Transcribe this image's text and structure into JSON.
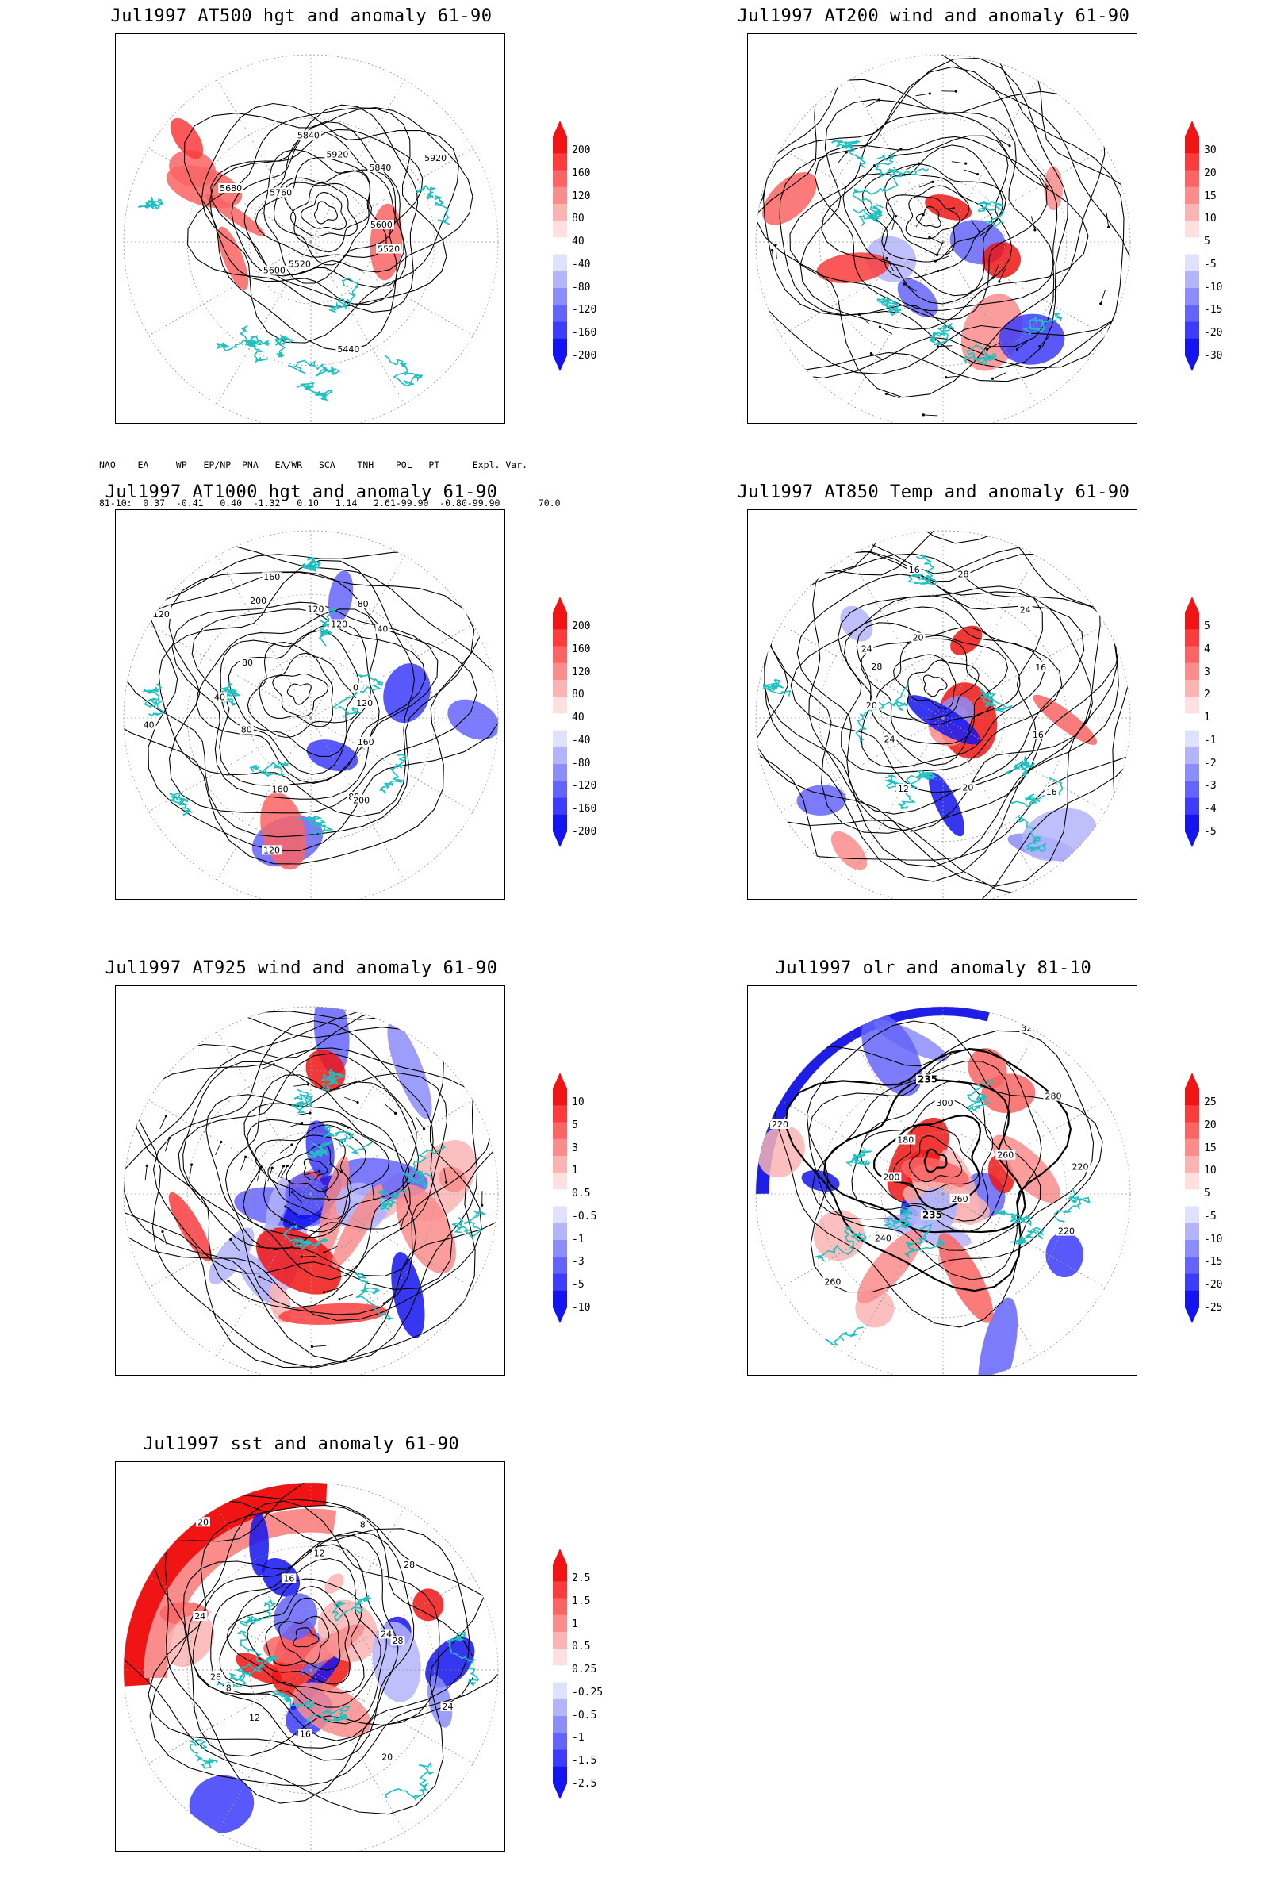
{
  "panels": [
    {
      "id": "p1",
      "title": "Jul1997 AT500 hgt and anomaly 61-90",
      "colorbar": [
        "200",
        "160",
        "120",
        "80",
        "40",
        "-40",
        "-80",
        "-120",
        "-160",
        "-200"
      ],
      "contour_labels": [
        "5600",
        "5520",
        "5440",
        "5520",
        "5600",
        "5680",
        "5760",
        "5840",
        "5920",
        "5840",
        "5920"
      ]
    },
    {
      "id": "p2",
      "title": "Jul1997 AT200 wind and anomaly 61-90",
      "colorbar": [
        "30",
        "20",
        "15",
        "10",
        "5",
        "-5",
        "-10",
        "-15",
        "-20",
        "-30"
      ],
      "contour_labels": []
    },
    {
      "id": "p3",
      "title": "Jul1997 AT1000 hgt and anomaly 61-90",
      "colorbar": [
        "200",
        "160",
        "120",
        "80",
        "40",
        "-40",
        "-80",
        "-120",
        "-160",
        "-200"
      ],
      "contour_labels": [
        "120",
        "160",
        "80",
        "200",
        "160",
        "120",
        "80",
        "40",
        "40",
        "120",
        "80",
        "200",
        "160",
        "120",
        "120",
        "80",
        "40",
        "0"
      ]
    },
    {
      "id": "p4",
      "title": "Jul1997 AT850 Temp and anomaly 61-90",
      "colorbar": [
        "5",
        "4",
        "3",
        "2",
        "1",
        "-1",
        "-2",
        "-3",
        "-4",
        "-5"
      ],
      "contour_labels": [
        "16",
        "16",
        "20",
        "12",
        "24",
        "20",
        "28",
        "24",
        "20",
        "16",
        "28",
        "24",
        "16"
      ]
    },
    {
      "id": "p5",
      "title": "Jul1997 AT925 wind and anomaly 61-90",
      "colorbar": [
        "10",
        "5",
        "3",
        "1",
        "0.5",
        "-0.5",
        "-1",
        "-3",
        "-5",
        "-10"
      ],
      "contour_labels": []
    },
    {
      "id": "p6",
      "title": "Jul1997 olr and anomaly 81-10",
      "colorbar": [
        "25",
        "20",
        "15",
        "10",
        "5",
        "-5",
        "-10",
        "-15",
        "-20",
        "-25"
      ],
      "contour_labels": [
        "220",
        "220",
        "260",
        "235",
        "240",
        "260",
        "200",
        "220",
        "180",
        "235",
        "300",
        "320",
        "280",
        "260"
      ]
    },
    {
      "id": "p7",
      "title": "Jul1997 sst and anomaly 61-90",
      "colorbar": [
        "2.5",
        "1.5",
        "1",
        "0.5",
        "0.25",
        "-0.25",
        "-0.5",
        "-1",
        "-1.5",
        "-2.5"
      ],
      "contour_labels": [
        "28",
        "24",
        "20",
        "16",
        "12",
        "8",
        "28",
        "24",
        "20",
        "16",
        "12",
        "8",
        "28",
        "24"
      ]
    }
  ],
  "teleconnections": {
    "header": "NAO    EA     WP   EP/NP  PNA   EA/WR   SCA    TNH    POL   PT      Expl. Var.",
    "row": "81-10:  0.37  -0.41   0.40  -1.32   0.10   1.14   2.61-99.90  -0.80-99.90       70.0"
  },
  "colors": {
    "positive_scale": [
      "#f01414",
      "#fa3c3c",
      "#fa6464",
      "#fa8c8c",
      "#fab4b4",
      "#ffe0e0"
    ],
    "negative_scale": [
      "#e0e0ff",
      "#b4b4fa",
      "#8c8cfa",
      "#6464fa",
      "#3c3cfa",
      "#1414f0"
    ],
    "coastline": "#20c0c0",
    "contour": "#000000"
  }
}
